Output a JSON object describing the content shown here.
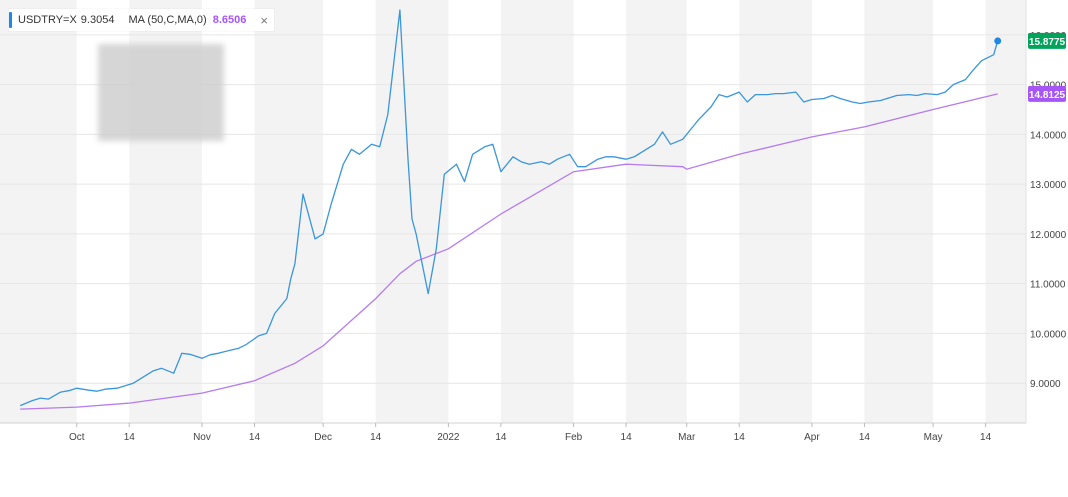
{
  "legend": {
    "symbol": "USDTRY=X",
    "symbol_value": "9.3054",
    "ma_label": "MA (50,C,MA,0)",
    "ma_value": "8.6506",
    "close_icon": "×"
  },
  "colors": {
    "price_line": "#3a96dd",
    "ma_line": "#b57bf2",
    "last_price_badge": "#00a35a",
    "ma_badge": "#a855f7",
    "band_gray": "#f3f3f3",
    "gridline": "#e6e6e6",
    "axis_text": "#444444"
  },
  "chart_data": {
    "type": "line",
    "title": "",
    "xlabel": "",
    "ylabel": "",
    "ylim": [
      8.2,
      16.7
    ],
    "grid": true,
    "y_ticks": [
      "9.0000",
      "10.0000",
      "11.0000",
      "12.0000",
      "13.0000",
      "14.0000",
      "15.0000",
      "16.0000"
    ],
    "x_ticks": [
      {
        "label": "Oct",
        "date": "2021-10-01"
      },
      {
        "label": "14",
        "date": "2021-10-14"
      },
      {
        "label": "Nov",
        "date": "2021-11-01"
      },
      {
        "label": "14",
        "date": "2021-11-14"
      },
      {
        "label": "Dec",
        "date": "2021-12-01"
      },
      {
        "label": "14",
        "date": "2021-12-14"
      },
      {
        "label": "2022",
        "date": "2022-01-01"
      },
      {
        "label": "14",
        "date": "2022-01-14"
      },
      {
        "label": "Feb",
        "date": "2022-02-01"
      },
      {
        "label": "14",
        "date": "2022-02-14"
      },
      {
        "label": "Mar",
        "date": "2022-03-01"
      },
      {
        "label": "14",
        "date": "2022-03-14"
      },
      {
        "label": "Apr",
        "date": "2022-04-01"
      },
      {
        "label": "14",
        "date": "2022-04-14"
      },
      {
        "label": "May",
        "date": "2022-05-01"
      },
      {
        "label": "14",
        "date": "2022-05-14"
      }
    ],
    "last_price_label": "15.8775",
    "ma_last_label": "14.8125",
    "series": [
      {
        "name": "USDTRY=X",
        "x": [
          "2021-09-17",
          "2021-09-20",
          "2021-09-22",
          "2021-09-24",
          "2021-09-27",
          "2021-09-29",
          "2021-10-01",
          "2021-10-04",
          "2021-10-06",
          "2021-10-08",
          "2021-10-11",
          "2021-10-13",
          "2021-10-15",
          "2021-10-18",
          "2021-10-20",
          "2021-10-22",
          "2021-10-25",
          "2021-10-27",
          "2021-10-29",
          "2021-11-01",
          "2021-11-03",
          "2021-11-05",
          "2021-11-08",
          "2021-11-10",
          "2021-11-12",
          "2021-11-15",
          "2021-11-17",
          "2021-11-19",
          "2021-11-22",
          "2021-11-23",
          "2021-11-24",
          "2021-11-26",
          "2021-11-29",
          "2021-12-01",
          "2021-12-03",
          "2021-12-06",
          "2021-12-08",
          "2021-12-10",
          "2021-12-13",
          "2021-12-15",
          "2021-12-17",
          "2021-12-20",
          "2021-12-22",
          "2021-12-23",
          "2021-12-24",
          "2021-12-27",
          "2021-12-29",
          "2021-12-31",
          "2022-01-03",
          "2022-01-05",
          "2022-01-07",
          "2022-01-10",
          "2022-01-12",
          "2022-01-14",
          "2022-01-17",
          "2022-01-19",
          "2022-01-21",
          "2022-01-24",
          "2022-01-26",
          "2022-01-28",
          "2022-01-31",
          "2022-02-02",
          "2022-02-04",
          "2022-02-07",
          "2022-02-09",
          "2022-02-11",
          "2022-02-14",
          "2022-02-16",
          "2022-02-18",
          "2022-02-21",
          "2022-02-23",
          "2022-02-25",
          "2022-02-28",
          "2022-03-02",
          "2022-03-04",
          "2022-03-07",
          "2022-03-09",
          "2022-03-11",
          "2022-03-14",
          "2022-03-16",
          "2022-03-18",
          "2022-03-21",
          "2022-03-23",
          "2022-03-25",
          "2022-03-28",
          "2022-03-30",
          "2022-04-01",
          "2022-04-04",
          "2022-04-06",
          "2022-04-08",
          "2022-04-11",
          "2022-04-13",
          "2022-04-15",
          "2022-04-18",
          "2022-04-20",
          "2022-04-22",
          "2022-04-25",
          "2022-04-27",
          "2022-04-29",
          "2022-05-02",
          "2022-05-04",
          "2022-05-06",
          "2022-05-09",
          "2022-05-11",
          "2022-05-13",
          "2022-05-16",
          "2022-05-17"
        ],
        "values": [
          8.55,
          8.65,
          8.7,
          8.68,
          8.82,
          8.85,
          8.9,
          8.86,
          8.84,
          8.88,
          8.9,
          8.95,
          9.0,
          9.15,
          9.25,
          9.3,
          9.2,
          9.6,
          9.58,
          9.5,
          9.57,
          9.6,
          9.66,
          9.7,
          9.78,
          9.95,
          10.0,
          10.4,
          10.7,
          11.1,
          11.4,
          12.8,
          11.9,
          12.0,
          12.6,
          13.4,
          13.7,
          13.6,
          13.8,
          13.75,
          14.4,
          16.5,
          13.5,
          12.3,
          12.0,
          10.8,
          11.7,
          13.2,
          13.4,
          13.05,
          13.6,
          13.75,
          13.8,
          13.25,
          13.55,
          13.45,
          13.4,
          13.45,
          13.4,
          13.5,
          13.6,
          13.35,
          13.35,
          13.5,
          13.55,
          13.55,
          13.5,
          13.55,
          13.65,
          13.8,
          14.05,
          13.8,
          13.9,
          14.1,
          14.3,
          14.55,
          14.8,
          14.75,
          14.85,
          14.65,
          14.8,
          14.8,
          14.82,
          14.82,
          14.85,
          14.65,
          14.7,
          14.72,
          14.78,
          14.72,
          14.65,
          14.62,
          14.65,
          14.68,
          14.73,
          14.78,
          14.8,
          14.78,
          14.82,
          14.8,
          14.85,
          15.0,
          15.1,
          15.3,
          15.48,
          15.6,
          15.8775
        ]
      },
      {
        "name": "MA (50,C,MA,0)",
        "x": [
          "2021-09-17",
          "2021-10-01",
          "2021-10-14",
          "2021-11-01",
          "2021-11-14",
          "2021-11-24",
          "2021-12-01",
          "2021-12-14",
          "2021-12-20",
          "2021-12-24",
          "2022-01-01",
          "2022-01-14",
          "2022-02-01",
          "2022-02-14",
          "2022-02-28",
          "2022-03-01",
          "2022-03-14",
          "2022-04-01",
          "2022-04-14",
          "2022-05-01",
          "2022-05-17"
        ],
        "values": [
          8.48,
          8.52,
          8.6,
          8.8,
          9.05,
          9.4,
          9.75,
          10.7,
          11.2,
          11.45,
          11.7,
          12.4,
          13.25,
          13.4,
          13.35,
          13.3,
          13.6,
          13.95,
          14.15,
          14.5,
          14.8125
        ]
      }
    ]
  }
}
